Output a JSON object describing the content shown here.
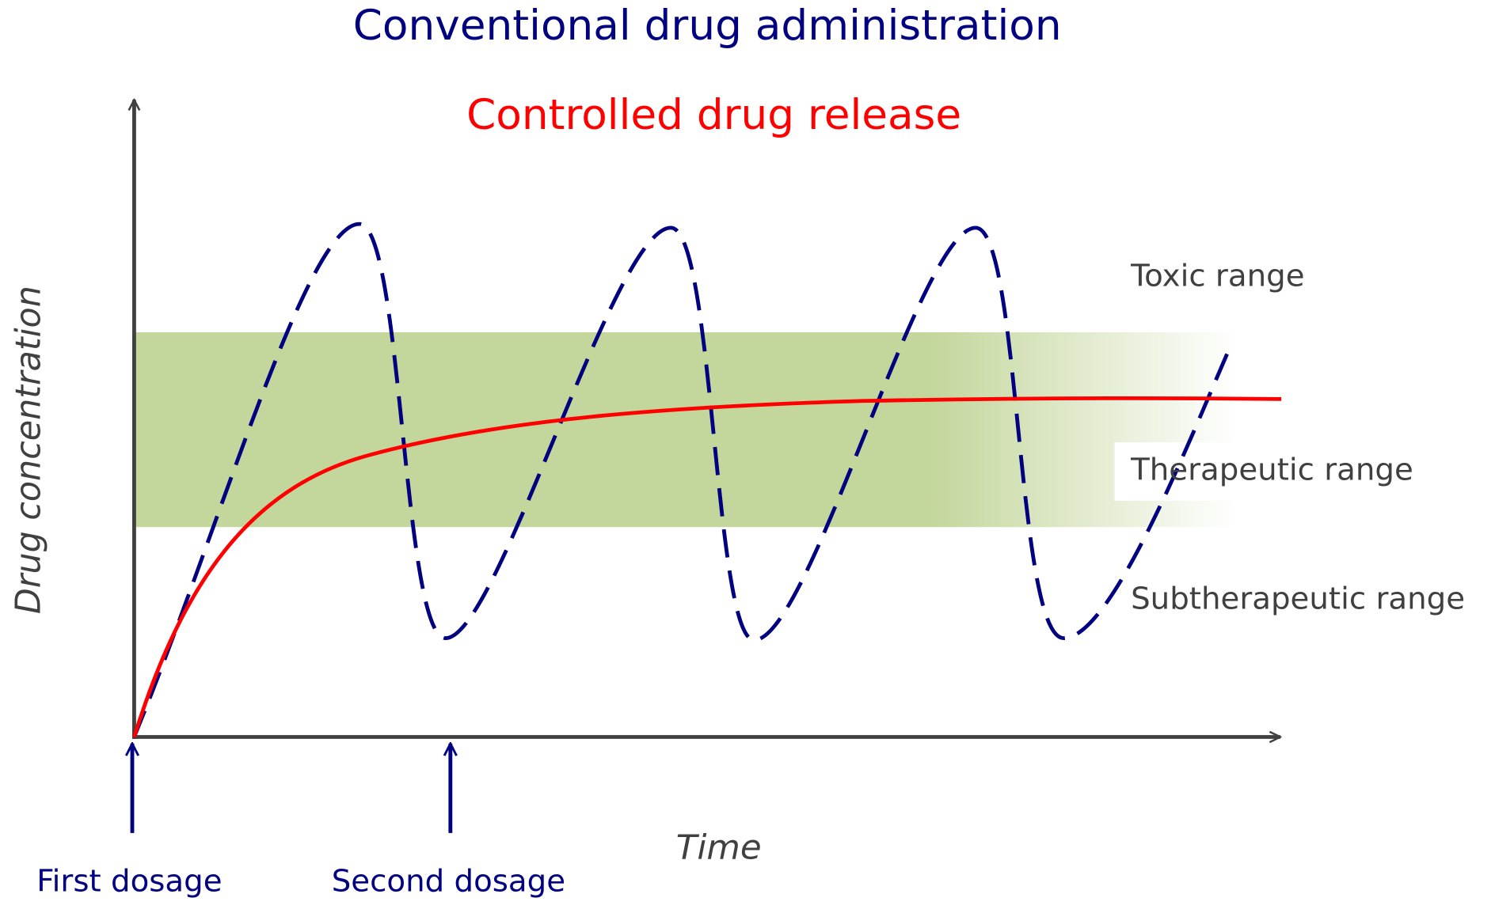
{
  "titles": {
    "conventional": "Conventional drug administration",
    "controlled": "Controlled drug release"
  },
  "axes": {
    "y_label": "Drug concentration",
    "x_label": "Time"
  },
  "ranges": {
    "toxic": "Toxic range",
    "therapeutic": "Therapeutic range",
    "subtherapeutic": "Subtherapeutic range"
  },
  "dosages": {
    "first": "First dosage",
    "second": "Second dosage"
  }
}
